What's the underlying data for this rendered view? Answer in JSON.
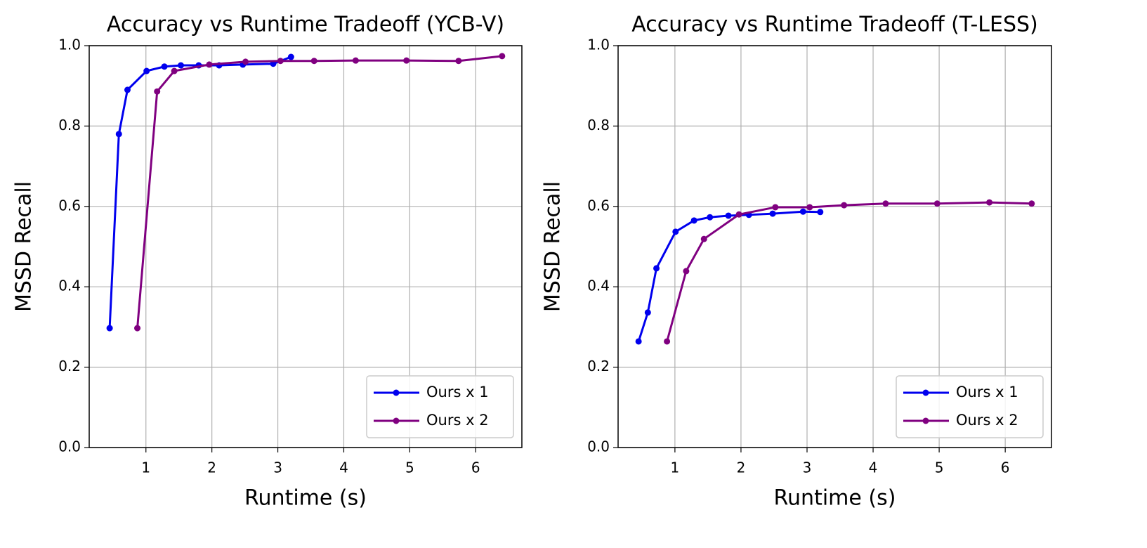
{
  "chart_data": [
    {
      "type": "line",
      "title": "Accuracy vs Runtime Tradeoff (YCB-V)",
      "xlabel": "Runtime (s)",
      "ylabel": "MSSD Recall",
      "xlim": [
        0.14,
        6.7
      ],
      "ylim": [
        0,
        1
      ],
      "xticks": [
        1,
        2,
        3,
        4,
        5,
        6
      ],
      "yticks": [
        {
          "value": 0,
          "label": "0.0"
        },
        {
          "value": 0.2,
          "label": "0.2"
        },
        {
          "value": 0.4,
          "label": "0.4"
        },
        {
          "value": 0.6,
          "label": "0.6"
        },
        {
          "value": 0.8,
          "label": "0.8"
        },
        {
          "value": 1,
          "label": "1.0"
        }
      ],
      "grid": true,
      "legend": "lower right",
      "series": [
        {
          "name": "Ours x 1",
          "color": "#0000ee",
          "x": [
            0.45,
            0.59,
            0.72,
            1.01,
            1.28,
            1.53,
            1.8,
            2.11,
            2.47,
            2.93,
            3.2
          ],
          "values": [
            0.297,
            0.78,
            0.89,
            0.937,
            0.948,
            0.951,
            0.951,
            0.951,
            0.953,
            0.955,
            0.972
          ]
        },
        {
          "name": "Ours x 2",
          "color": "#800080",
          "x": [
            0.87,
            1.17,
            1.43,
            1.96,
            2.51,
            3.04,
            3.55,
            4.18,
            4.95,
            5.74,
            6.4
          ],
          "values": [
            0.297,
            0.886,
            0.937,
            0.953,
            0.96,
            0.962,
            0.962,
            0.963,
            0.963,
            0.962,
            0.974
          ]
        }
      ]
    },
    {
      "type": "line",
      "title": "Accuracy vs Runtime Tradeoff (T-LESS)",
      "xlabel": "Runtime (s)",
      "ylabel": "MSSD Recall",
      "xlim": [
        0.14,
        6.7
      ],
      "ylim": [
        0,
        1
      ],
      "xticks": [
        1,
        2,
        3,
        4,
        5,
        6
      ],
      "yticks": [
        {
          "value": 0,
          "label": "0.0"
        },
        {
          "value": 0.2,
          "label": "0.2"
        },
        {
          "value": 0.4,
          "label": "0.4"
        },
        {
          "value": 0.6,
          "label": "0.6"
        },
        {
          "value": 0.8,
          "label": "0.8"
        },
        {
          "value": 1,
          "label": "1.0"
        }
      ],
      "grid": true,
      "legend": "lower right",
      "series": [
        {
          "name": "Ours x 1",
          "color": "#0000ee",
          "x": [
            0.45,
            0.59,
            0.72,
            1.01,
            1.29,
            1.53,
            1.81,
            2.12,
            2.48,
            2.94,
            3.2
          ],
          "values": [
            0.264,
            0.336,
            0.446,
            0.537,
            0.565,
            0.573,
            0.577,
            0.579,
            0.582,
            0.587,
            0.586
          ]
        },
        {
          "name": "Ours x 2",
          "color": "#800080",
          "x": [
            0.88,
            1.17,
            1.44,
            1.97,
            2.52,
            3.04,
            3.56,
            4.19,
            4.97,
            5.76,
            6.4
          ],
          "values": [
            0.264,
            0.439,
            0.519,
            0.58,
            0.598,
            0.598,
            0.603,
            0.607,
            0.607,
            0.61,
            0.607
          ]
        }
      ]
    }
  ]
}
